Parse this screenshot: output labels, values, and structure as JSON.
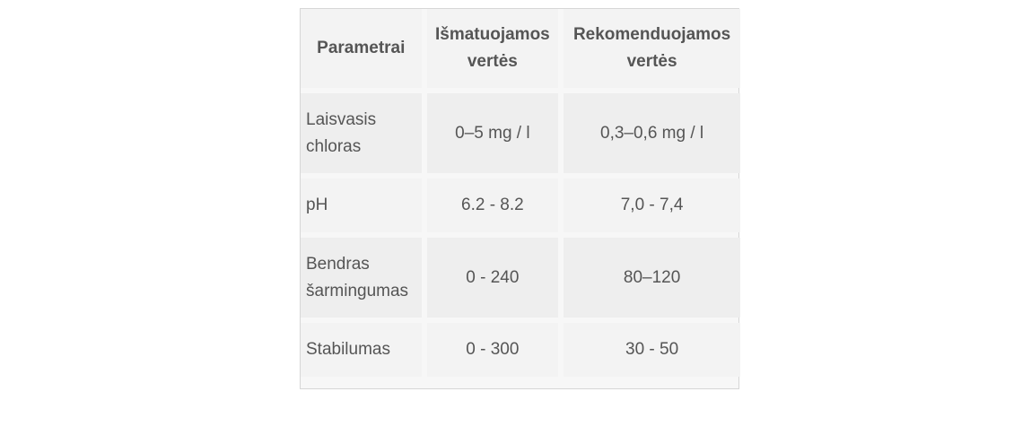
{
  "table": {
    "headers": [
      "Parametrai",
      "Išmatuojamos vertės",
      "Rekomenduojamos vertės"
    ],
    "rows": [
      {
        "param": "Laisvasis chloras",
        "measured": "0–5 mg / l",
        "recommended": "0,3–0,6 mg / l"
      },
      {
        "param": "pH",
        "measured": "6.2 - 8.2",
        "recommended": "7,0 - 7,4"
      },
      {
        "param": "Bendras šarmingumas",
        "measured": "0 - 240",
        "recommended": "80–120"
      },
      {
        "param": "Stabilumas",
        "measured": "0 - 300",
        "recommended": "30 - 50"
      }
    ]
  }
}
